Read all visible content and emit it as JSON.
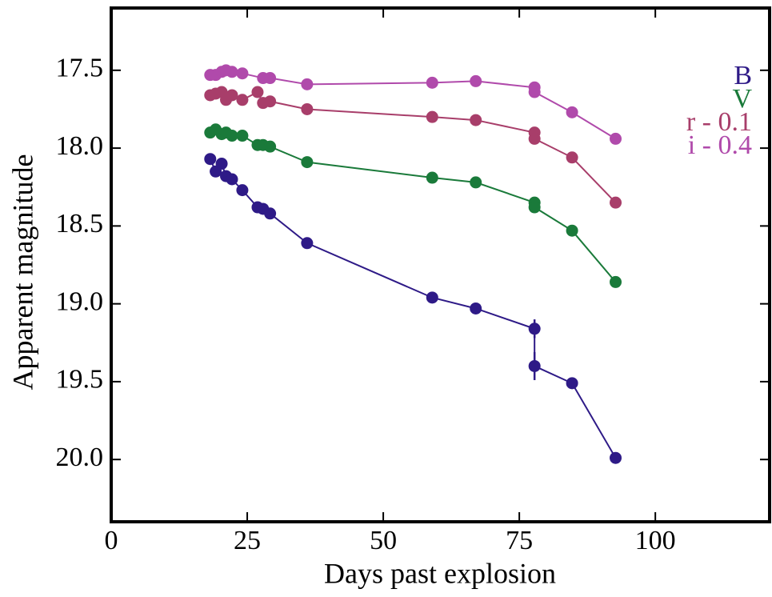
{
  "chart_data": {
    "type": "line",
    "xlabel": "Days past explosion",
    "ylabel": "Apparent magnitude",
    "xlim": [
      0,
      121
    ],
    "ylim": [
      17.1,
      20.4
    ],
    "y_inverted": true,
    "xticks": [
      0,
      25,
      50,
      75,
      100
    ],
    "yticks": [
      17.5,
      {
        "value": 18,
        "label": "18.0"
      },
      18.5,
      {
        "value": 19,
        "label": "19.0"
      },
      19.5,
      {
        "value": 20,
        "label": "20.0"
      }
    ],
    "grid": false,
    "legend": "upper right",
    "series": [
      {
        "name": "B",
        "color": "#2e1a87",
        "x": [
          18.2,
          19.2,
          20.3,
          21.1,
          22.2,
          24.1,
          26.9,
          27.9,
          29.2,
          36.0,
          59.0,
          67.0,
          77.8,
          77.8,
          84.7,
          92.7
        ],
        "values": [
          18.07,
          18.15,
          18.1,
          18.18,
          18.2,
          18.27,
          18.38,
          18.39,
          18.42,
          18.61,
          18.96,
          19.03,
          19.16,
          19.4,
          19.51,
          19.99
        ],
        "errors": [
          0.02,
          0.02,
          0.02,
          0.02,
          0.02,
          0.02,
          0.02,
          0.02,
          0.02,
          0.02,
          0.02,
          0.02,
          0.06,
          0.09,
          0.03,
          0.03
        ]
      },
      {
        "name": "V",
        "color": "#1a7a3a",
        "x": [
          18.2,
          19.2,
          20.3,
          21.1,
          22.2,
          24.1,
          26.9,
          27.9,
          29.2,
          36.0,
          59.0,
          67.0,
          77.8,
          77.8,
          84.7,
          92.7
        ],
        "values": [
          17.9,
          17.88,
          17.91,
          17.9,
          17.92,
          17.92,
          17.98,
          17.98,
          17.99,
          18.09,
          18.19,
          18.22,
          18.35,
          18.38,
          18.53,
          18.86
        ]
      },
      {
        "name": "r - 0.1",
        "color": "#a83e6a",
        "x": [
          18.2,
          19.2,
          20.3,
          21.1,
          22.2,
          24.1,
          26.9,
          27.9,
          29.2,
          36.0,
          59.0,
          67.0,
          77.8,
          77.8,
          84.7,
          92.7
        ],
        "values": [
          17.66,
          17.65,
          17.64,
          17.69,
          17.66,
          17.69,
          17.64,
          17.71,
          17.7,
          17.75,
          17.8,
          17.82,
          17.9,
          17.94,
          18.06,
          18.35
        ]
      },
      {
        "name": "i - 0.4",
        "color": "#b04aab",
        "x": [
          18.2,
          19.2,
          20.3,
          21.1,
          22.2,
          24.1,
          27.9,
          29.2,
          36.0,
          59.0,
          67.0,
          77.8,
          77.8,
          84.7,
          92.7
        ],
        "values": [
          17.53,
          17.53,
          17.51,
          17.5,
          17.51,
          17.52,
          17.55,
          17.55,
          17.59,
          17.58,
          17.57,
          17.61,
          17.64,
          17.77,
          17.94
        ]
      }
    ]
  }
}
